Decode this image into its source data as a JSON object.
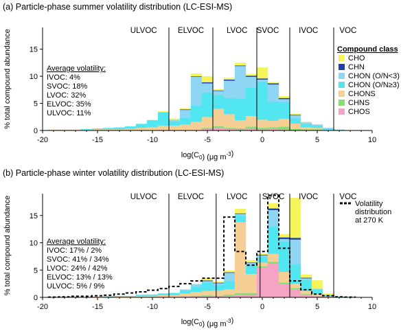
{
  "colors": {
    "CHO": "#f5f55a",
    "CHN": "#1f3fae",
    "CHON (O/N<3)": "#8fd6f5",
    "CHON (O/N≥3)": "#52e6f0",
    "CHONS": "#f5cf96",
    "CHNS": "#7de36e",
    "CHOS": "#f7a3c6"
  },
  "chart_data": [
    {
      "type": "bar",
      "stacked": true,
      "title": "(a) Particle-phase summer volatility distribution (LC-ESI-MS)",
      "xlabel": "log(C",
      "xlabel_sub": "0",
      "xlabel_units": ") (μg m",
      "xlabel_exp": "-3",
      "xlabel_end": ")",
      "ylabel": "% total compound abundance",
      "xlim": [
        -20,
        10
      ],
      "ylim": [
        0,
        19
      ],
      "xticks": [
        -20,
        -15,
        -10,
        -5,
        0,
        5,
        10
      ],
      "yticks": [
        0,
        5,
        10,
        15
      ],
      "bands": [
        {
          "label": "ULVOC",
          "center": -10.8,
          "boundary": -8.5
        },
        {
          "label": "ELVOC",
          "center": -6.5,
          "boundary": -4.5
        },
        {
          "label": "LVOC",
          "center": -2.3,
          "boundary": -0.5
        },
        {
          "label": "SVOC",
          "center": 0.5,
          "boundary": 2.5
        },
        {
          "label": "IVOC",
          "center": 4.2,
          "boundary": 6.5
        },
        {
          "label": "VOC",
          "center": 7.8,
          "boundary": null
        }
      ],
      "average_title": "Average volatility:",
      "average": [
        "IVOC: 4%",
        "SVOC: 18%",
        "LVOC: 32%",
        "ELVOC: 35%",
        "ULVOC: 11%"
      ],
      "legend_title": "Compound class",
      "legend": [
        "CHO",
        "CHN",
        "CHON (O/N<3)",
        "CHON (O/N≥3)",
        "CHONS",
        "CHNS",
        "CHOS"
      ],
      "bin_width": 1,
      "x": [
        -19,
        -18,
        -17,
        -16,
        -15,
        -14,
        -13,
        -12,
        -11,
        -10,
        -9,
        -8,
        -7,
        -6,
        -5,
        -4,
        -3,
        -2,
        -1,
        0,
        1,
        2,
        3,
        4,
        5,
        6,
        7,
        8
      ],
      "series": [
        {
          "name": "CHOS",
          "values": [
            0.05,
            0.05,
            0.05,
            0.05,
            0.05,
            0.05,
            0.05,
            0.05,
            0.1,
            0.1,
            0.1,
            0.1,
            0.1,
            0.1,
            0.3,
            0.5,
            0.3,
            0.2,
            0.3,
            0.2,
            0.3,
            0.2,
            0.1,
            0.1,
            0.1,
            0.05,
            0.05,
            0.05
          ]
        },
        {
          "name": "CHNS",
          "values": [
            0,
            0,
            0,
            0,
            0,
            0,
            0,
            0,
            0,
            0,
            0,
            0,
            0,
            0,
            0.2,
            0.3,
            0.2,
            0.2,
            0.4,
            0.3,
            0.3,
            0.5,
            0.2,
            0.1,
            0.1,
            0,
            0,
            0
          ]
        },
        {
          "name": "CHONS",
          "values": [
            0.1,
            0.1,
            0.1,
            0.1,
            0.2,
            0.2,
            0.2,
            0.3,
            0.4,
            0.5,
            0.8,
            0.8,
            1.0,
            1.5,
            2.0,
            3.2,
            2.5,
            1.5,
            2.0,
            1.5,
            1.2,
            1.5,
            1.0,
            0.4,
            0.3,
            0.1,
            0,
            0
          ]
        },
        {
          "name": "CHON (O/N≥3)",
          "values": [
            0,
            0,
            0,
            0.1,
            0.1,
            0.2,
            0.3,
            0.4,
            0.7,
            1.3,
            2.5,
            0.8,
            1.2,
            3.0,
            4.5,
            2.5,
            3.0,
            4.0,
            5.2,
            7.0,
            3.5,
            3.0,
            0.9,
            0.6,
            0.4,
            0.2,
            0.1,
            0
          ]
        },
        {
          "name": "CHON (O/N<3)",
          "values": [
            0,
            0,
            0,
            0,
            0,
            0,
            0,
            0,
            0,
            0,
            0,
            0.3,
            1.5,
            5.3,
            1.7,
            0.8,
            3.2,
            6.0,
            2.0,
            0.4,
            3.2,
            0.6,
            0.6,
            0.3,
            0.2,
            0.1,
            0,
            0
          ]
        },
        {
          "name": "CHN",
          "values": [
            0,
            0,
            0,
            0,
            0,
            0,
            0,
            0,
            0,
            0,
            0,
            0,
            0.1,
            0.1,
            0.2,
            0.1,
            0.2,
            0.1,
            0.2,
            0.2,
            0.2,
            0.2,
            0.1,
            0,
            0,
            0,
            0,
            0
          ]
        },
        {
          "name": "CHO",
          "values": [
            0,
            0,
            0,
            0,
            0,
            0,
            0,
            0,
            0,
            0,
            0.1,
            0.2,
            0.2,
            0.5,
            1.1,
            0.2,
            0.3,
            0.5,
            0.3,
            2.0,
            0.2,
            0.3,
            0.2,
            0.1,
            0,
            0,
            0,
            0
          ]
        }
      ]
    },
    {
      "type": "bar",
      "stacked": true,
      "title": "(b) Particle-phase winter volatility distribution (LC-ESI-MS)",
      "xlabel": "log(C",
      "xlabel_sub": "0",
      "xlabel_units": ") (μg m",
      "xlabel_exp": "-3",
      "xlabel_end": ")",
      "ylabel": "% total compound abundance",
      "xlim": [
        -20,
        10
      ],
      "ylim": [
        0,
        19
      ],
      "xticks": [
        -20,
        -15,
        -10,
        -5,
        0,
        5,
        10
      ],
      "yticks": [
        0,
        5,
        10,
        15
      ],
      "bands": [
        {
          "label": "ULVOC",
          "center": -10.8,
          "boundary": -8.5
        },
        {
          "label": "ELVOC",
          "center": -6.5,
          "boundary": -4.2
        },
        {
          "label": "LVOC",
          "center": -2.3,
          "boundary": -0.2
        },
        {
          "label": "SVOC",
          "center": 1.0,
          "boundary": 2.5
        },
        {
          "label": "IVOC",
          "center": 4.2,
          "boundary": 6.5
        },
        {
          "label": "VOC",
          "center": 7.8,
          "boundary": null
        }
      ],
      "average_title": "Average volatility:",
      "average": [
        "IVOC: 17% / 2%",
        "SVOC: 41% / 34%",
        "LVOC: 24% / 42%",
        "ELVOC: 13% / 13%",
        "ULVOC: 5% / 9%"
      ],
      "line_legend": [
        "Volatility",
        "distribution",
        "at 270 K"
      ],
      "bin_width": 1,
      "x": [
        -19,
        -18,
        -17,
        -16,
        -15,
        -14,
        -13,
        -12,
        -11,
        -10,
        -9,
        -8,
        -7,
        -6,
        -5,
        -4,
        -3,
        -2,
        -1,
        0,
        1,
        2,
        3,
        4,
        5,
        6,
        7,
        8
      ],
      "series": [
        {
          "name": "CHOS",
          "values": [
            0,
            0,
            0,
            0,
            0,
            0,
            0.05,
            0.05,
            0.05,
            0.1,
            0.1,
            0.1,
            0.2,
            0.2,
            0.3,
            0.2,
            0.3,
            0.5,
            0.4,
            5.5,
            6.2,
            2.5,
            1.5,
            0.5,
            0.3,
            0.1,
            0,
            0
          ]
        },
        {
          "name": "CHNS",
          "values": [
            0,
            0,
            0,
            0,
            0,
            0,
            0,
            0,
            0,
            0,
            0,
            0,
            0,
            0.1,
            0.1,
            0.1,
            0.2,
            0.3,
            0.4,
            0.2,
            0.3,
            0.2,
            0.2,
            0.1,
            0,
            0,
            0,
            0
          ]
        },
        {
          "name": "CHONS",
          "values": [
            0,
            0,
            0,
            0,
            0.1,
            0.1,
            0.1,
            0.1,
            0.2,
            0.2,
            0.3,
            0.3,
            0.5,
            0.7,
            0.8,
            1.0,
            1.0,
            13.0,
            3.5,
            0.7,
            1.5,
            2.0,
            0.8,
            0.6,
            0.3,
            0.1,
            0,
            0
          ]
        },
        {
          "name": "CHON (O/N≥3)",
          "values": [
            0,
            0,
            0,
            0,
            0,
            0.1,
            0.1,
            0.1,
            0.2,
            0.2,
            0.3,
            0.4,
            0.6,
            0.9,
            1.5,
            1.0,
            1.5,
            1.2,
            1.6,
            1.0,
            5.0,
            5.5,
            3.6,
            2.0,
            0.8,
            0.3,
            0.1,
            0
          ]
        },
        {
          "name": "CHON (O/N<3)",
          "values": [
            0,
            0,
            0,
            0,
            0,
            0,
            0,
            0,
            0,
            0,
            0,
            0,
            0.1,
            0.5,
            0.3,
            0.3,
            1.5,
            0.3,
            0.4,
            0.3,
            3.0,
            0.5,
            4.5,
            0.3,
            0.2,
            0,
            0,
            0
          ]
        },
        {
          "name": "CHN",
          "values": [
            0,
            0,
            0,
            0,
            0,
            0,
            0,
            0,
            0,
            0,
            0,
            0,
            0,
            0,
            0.1,
            0.1,
            0.1,
            0.1,
            0.1,
            0.1,
            0.3,
            0.3,
            0.3,
            0.1,
            0,
            0,
            0,
            0
          ]
        },
        {
          "name": "CHO",
          "values": [
            0,
            0,
            0,
            0,
            0,
            0,
            0,
            0,
            0,
            0,
            0,
            0,
            0.1,
            0.1,
            0.3,
            0.2,
            0.3,
            0.8,
            0.4,
            0.2,
            0.9,
            0.6,
            7.3,
            0.6,
            1.5,
            0.2,
            0,
            0
          ]
        }
      ],
      "line": {
        "name": "Volatility distribution at 270 K",
        "x": [
          -19,
          -18,
          -17,
          -16,
          -15,
          -14,
          -13,
          -12,
          -11,
          -10,
          -9,
          -8,
          -7,
          -6,
          -5,
          -4,
          -3,
          -2,
          -1,
          0,
          1,
          2,
          3,
          4,
          5,
          6,
          7,
          8
        ],
        "values": [
          0.05,
          0.1,
          0.2,
          0.2,
          0.3,
          0.4,
          0.6,
          0.8,
          1.0,
          1.3,
          1.6,
          2.0,
          2.5,
          3.0,
          3.5,
          3.5,
          14.7,
          8.4,
          5.9,
          8.4,
          18.7,
          9.0,
          3.0,
          1.4,
          0.6,
          0.3,
          0.1,
          0.05
        ]
      }
    }
  ]
}
